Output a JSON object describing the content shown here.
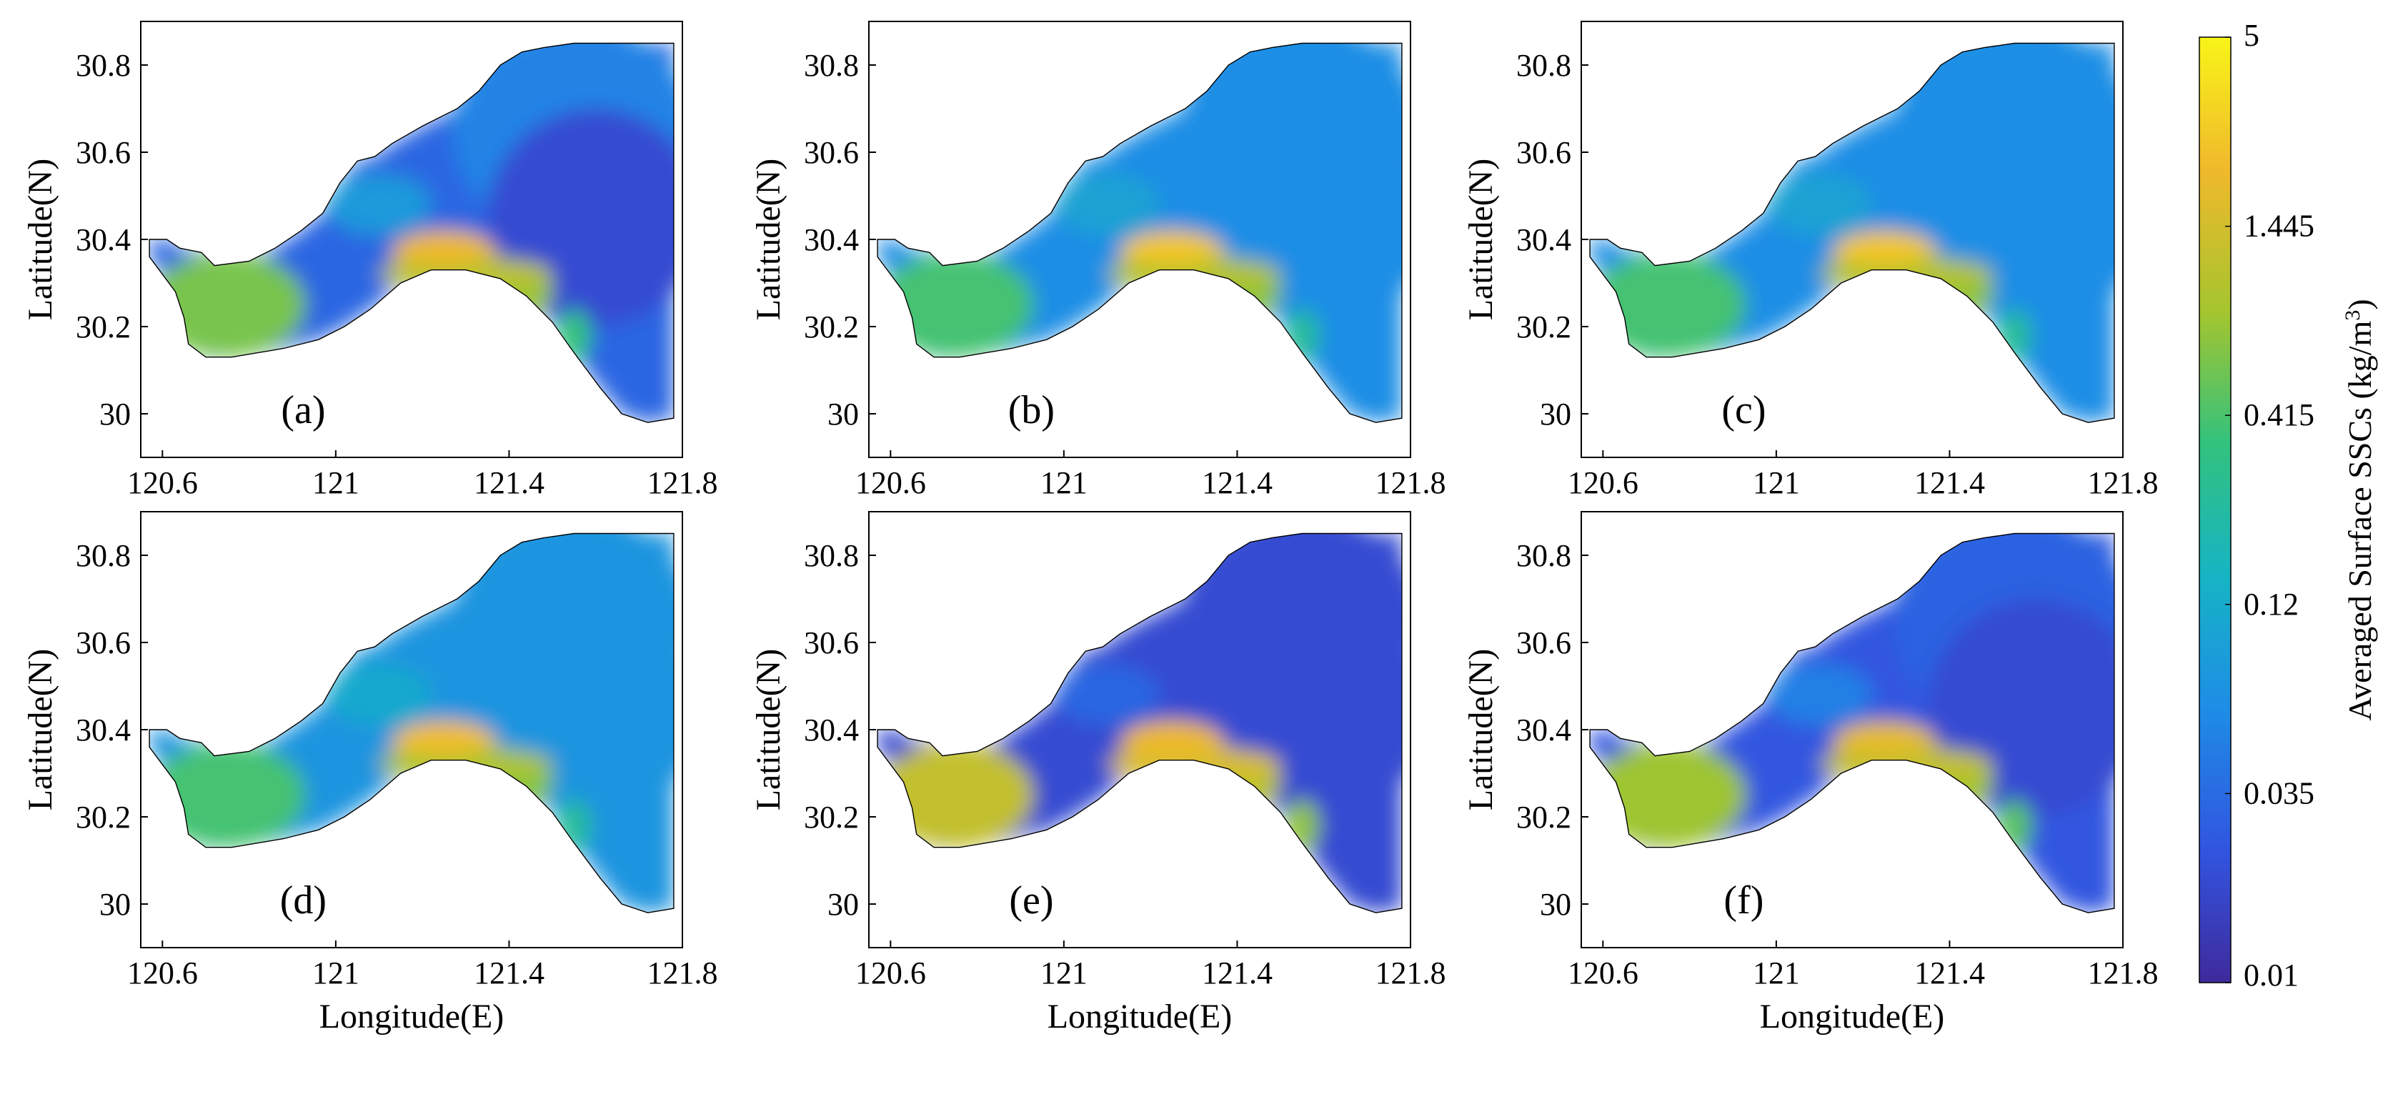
{
  "figure": {
    "x_axis_label": "Longitude(E)",
    "y_axis_label": "Latitude(N)",
    "x_ticks": [
      "120.6",
      "121",
      "121.4",
      "121.8"
    ],
    "y_ticks": [
      "30.8",
      "30.6",
      "30.4",
      "30.2",
      "30"
    ],
    "panel_labels": [
      "(a)",
      "(b)",
      "(c)",
      "(d)",
      "(e)",
      "(f)"
    ],
    "colorbar": {
      "title_main": "Averaged Surface SSCs (kg/m",
      "title_sup": "3",
      "title_close": ")",
      "tick_labels": [
        "5",
        "1.445",
        "0.415",
        "0.12",
        "0.035",
        "0.01"
      ],
      "colors": [
        "#3f2a9c",
        "#3155e0",
        "#1e8de6",
        "#16b4c4",
        "#32c27e",
        "#a5c52e",
        "#f0b92c",
        "#f8f418"
      ]
    }
  },
  "chart_data": {
    "type": "heatmap",
    "title": "",
    "xlabel": "Longitude(E)",
    "ylabel": "Latitude(N)",
    "xlim": [
      120.55,
      121.8
    ],
    "ylim": [
      29.9,
      30.9
    ],
    "color_scale": "log",
    "clim": [
      0.01,
      5
    ],
    "colorbar_label": "Averaged Surface SSCs (kg/m3)",
    "panels": [
      {
        "label": "(a)",
        "offshore": 0.02,
        "northern": 0.05,
        "southern_max": 2.0,
        "western": 0.6
      },
      {
        "label": "(b)",
        "offshore": 0.06,
        "northern": 0.06,
        "southern_max": 2.5,
        "western": 0.4
      },
      {
        "label": "(c)",
        "offshore": 0.06,
        "northern": 0.06,
        "southern_max": 2.5,
        "western": 0.4
      },
      {
        "label": "(d)",
        "offshore": 0.07,
        "northern": 0.07,
        "southern_max": 2.2,
        "western": 0.4
      },
      {
        "label": "(e)",
        "offshore": 0.02,
        "northern": 0.02,
        "southern_max": 2.0,
        "western": 1.2
      },
      {
        "label": "(f)",
        "offshore": 0.02,
        "northern": 0.03,
        "southern_max": 1.8,
        "western": 0.8
      }
    ]
  }
}
